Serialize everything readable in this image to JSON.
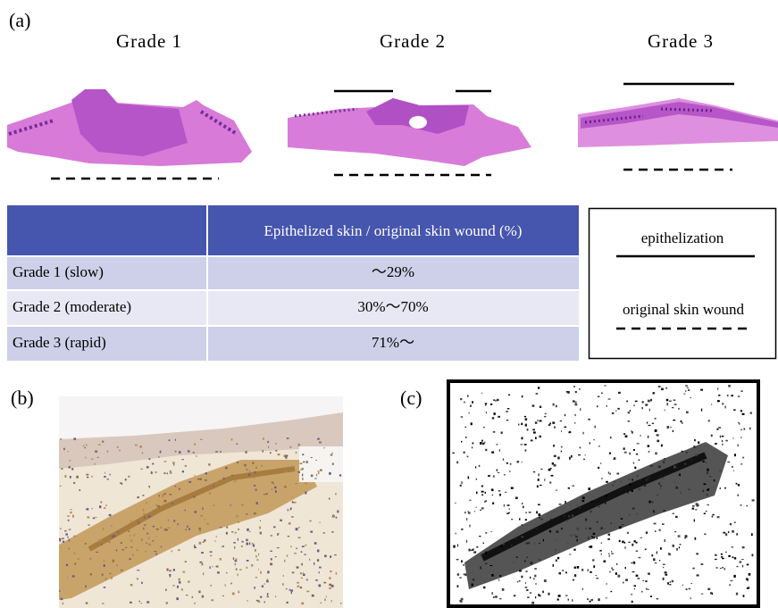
{
  "panel_a": {
    "label": "(a)",
    "grades": [
      "Grade 1",
      "Grade 2",
      "Grade 3"
    ],
    "table": {
      "header": [
        "Epithelized skin / original skin wound (%)"
      ],
      "rows": [
        [
          "Grade 1 (slow)",
          "～29%"
        ],
        [
          "Grade 2 (moderate)",
          "30%～70%"
        ],
        [
          "Grade 3 (rapid)",
          "71%～"
        ]
      ]
    },
    "legend": {
      "solid": "epithelization",
      "dashed": "original skin wound"
    }
  },
  "panel_b": {
    "label": "(b)"
  },
  "panel_c": {
    "label": "(c)"
  }
}
